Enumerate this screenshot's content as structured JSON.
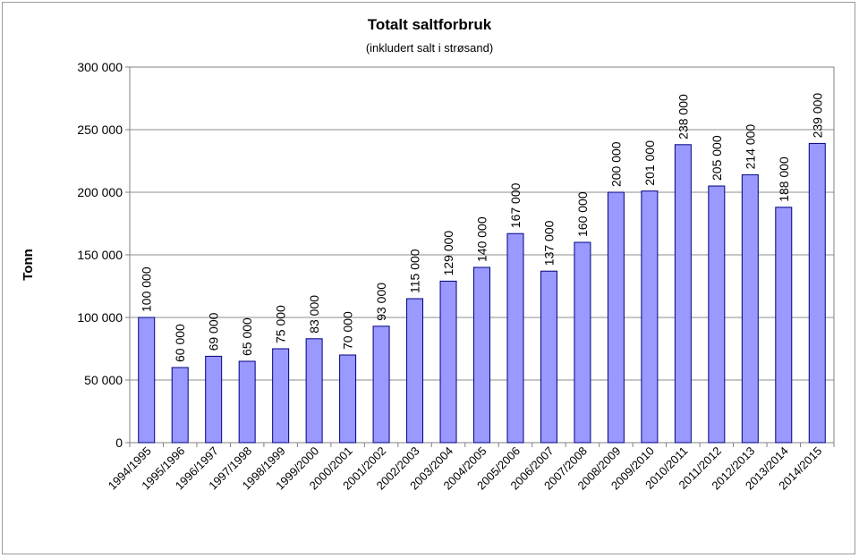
{
  "chart_data": {
    "type": "bar",
    "title": "Totalt saltforbruk",
    "subtitle": "(inkludert salt i strøsand)",
    "xlabel": "",
    "ylabel": "Tonn",
    "ylim": [
      0,
      300000
    ],
    "yticks": [
      0,
      50000,
      100000,
      150000,
      200000,
      250000,
      300000
    ],
    "ytick_labels": [
      "0",
      "50 000",
      "100 000",
      "150 000",
      "200 000",
      "250 000",
      "300 000"
    ],
    "grid": true,
    "legend": "none",
    "bar_color": "#9999ff",
    "bar_edge_color": "#000080",
    "categories": [
      "1994/1995",
      "1995/1996",
      "1996/1997",
      "1997/1998",
      "1998/1999",
      "1999/2000",
      "2000/2001",
      "2001/2002",
      "2002/2003",
      "2003/2004",
      "2004/2005",
      "2005/2006",
      "2006/2007",
      "2007/2008",
      "2008/2009",
      "2009/2010",
      "2010/2011",
      "2011/2012",
      "2012/2013",
      "2013/2014",
      "2014/2015"
    ],
    "values": [
      100000,
      60000,
      69000,
      65000,
      75000,
      83000,
      70000,
      93000,
      115000,
      129000,
      140000,
      167000,
      137000,
      160000,
      200000,
      201000,
      238000,
      205000,
      214000,
      188000,
      239000
    ],
    "data_labels": [
      "100 000",
      "60 000",
      "69 000",
      "65 000",
      "75 000",
      "83 000",
      "70 000",
      "93 000",
      "115 000",
      "129 000",
      "140 000",
      "167 000",
      "137 000",
      "160 000",
      "200 000",
      "201 000",
      "238 000",
      "205 000",
      "214 000",
      "188 000",
      "239 000"
    ]
  }
}
